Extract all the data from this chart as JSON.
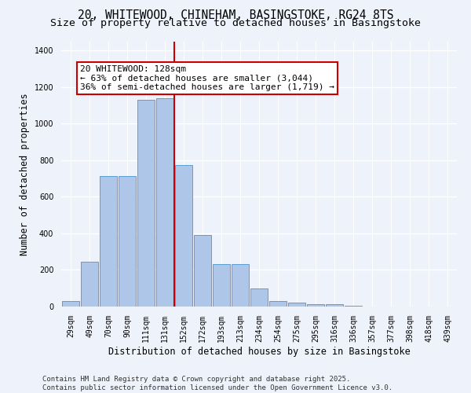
{
  "title": "20, WHITEWOOD, CHINEHAM, BASINGSTOKE, RG24 8TS",
  "subtitle": "Size of property relative to detached houses in Basingstoke",
  "xlabel": "Distribution of detached houses by size in Basingstoke",
  "ylabel": "Number of detached properties",
  "categories": [
    "29sqm",
    "49sqm",
    "70sqm",
    "90sqm",
    "111sqm",
    "131sqm",
    "152sqm",
    "172sqm",
    "193sqm",
    "213sqm",
    "234sqm",
    "254sqm",
    "275sqm",
    "295sqm",
    "316sqm",
    "336sqm",
    "357sqm",
    "377sqm",
    "398sqm",
    "418sqm",
    "439sqm"
  ],
  "values": [
    30,
    245,
    715,
    715,
    1130,
    1140,
    775,
    390,
    230,
    230,
    100,
    30,
    20,
    15,
    15,
    5,
    0,
    0,
    0,
    0,
    0
  ],
  "bar_color": "#aec6e8",
  "bar_edge_color": "#5a9fd4",
  "red_line_x": 5.5,
  "annotation_text": "20 WHITEWOOD: 128sqm\n← 63% of detached houses are smaller (3,044)\n36% of semi-detached houses are larger (1,719) →",
  "annotation_box_color": "#ffffff",
  "annotation_box_edge": "#cc0000",
  "ylim": [
    0,
    1450
  ],
  "yticks": [
    0,
    200,
    400,
    600,
    800,
    1000,
    1200,
    1400
  ],
  "footer_line1": "Contains HM Land Registry data © Crown copyright and database right 2025.",
  "footer_line2": "Contains public sector information licensed under the Open Government Licence v3.0.",
  "bg_color": "#eef2fa",
  "grid_color": "#ffffff",
  "title_fontsize": 10.5,
  "subtitle_fontsize": 9.5,
  "axis_label_fontsize": 8.5,
  "tick_fontsize": 7,
  "annotation_fontsize": 8,
  "footer_fontsize": 6.5
}
